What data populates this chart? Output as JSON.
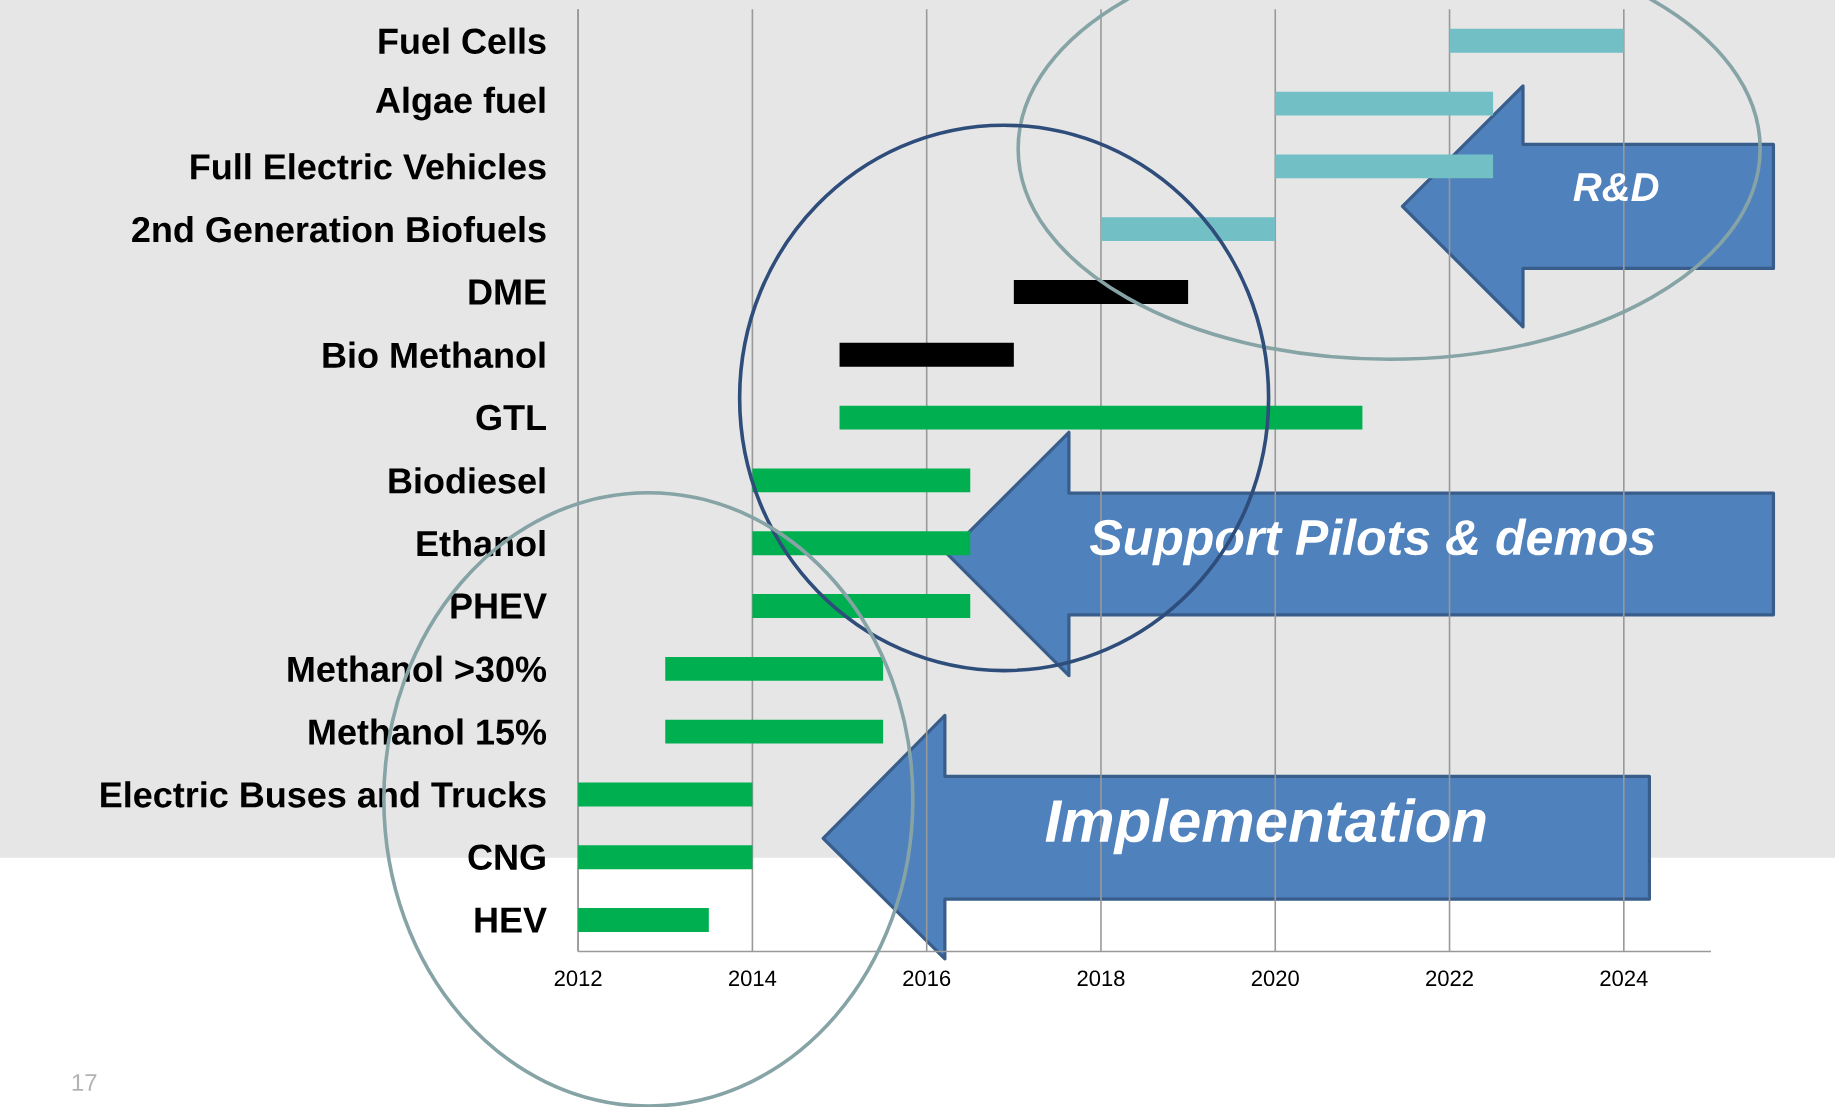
{
  "chart_data": {
    "type": "bar",
    "orientation": "horizontal",
    "categories": [
      "Fuel Cells",
      "Algae fuel",
      "Full Electric Vehicles",
      "2nd Generation Biofuels",
      "DME",
      "Bio Methanol",
      "GTL",
      "Biodiesel",
      "Ethanol",
      "PHEV",
      "Methanol >30%",
      "Methanol 15%",
      "Electric Buses and Trucks",
      "CNG",
      "HEV"
    ],
    "base": [
      2022,
      2020,
      2020,
      2018,
      2017,
      2015,
      2015,
      2014,
      2014,
      2014,
      2013,
      2013,
      2012,
      2012,
      2012
    ],
    "values": [
      2,
      2.5,
      2.5,
      2,
      2,
      2,
      6,
      2.5,
      2.5,
      2.5,
      2.5,
      2.5,
      2,
      2,
      1.5
    ],
    "colors": [
      "#72bfc5",
      "#72bfc5",
      "#72bfc5",
      "#72bfc5",
      "#000000",
      "#000000",
      "#00b050",
      "#00b050",
      "#00b050",
      "#00b050",
      "#00b050",
      "#00b050",
      "#00b050",
      "#00b050",
      "#00b050"
    ],
    "xlim": [
      2012,
      2025
    ],
    "xticks": [
      2012,
      2014,
      2016,
      2018,
      2020,
      2022,
      2024
    ],
    "grid": "x",
    "annotations": [
      "R&D",
      "Support Pilots & demos",
      "Implementation",
      "17"
    ]
  }
}
